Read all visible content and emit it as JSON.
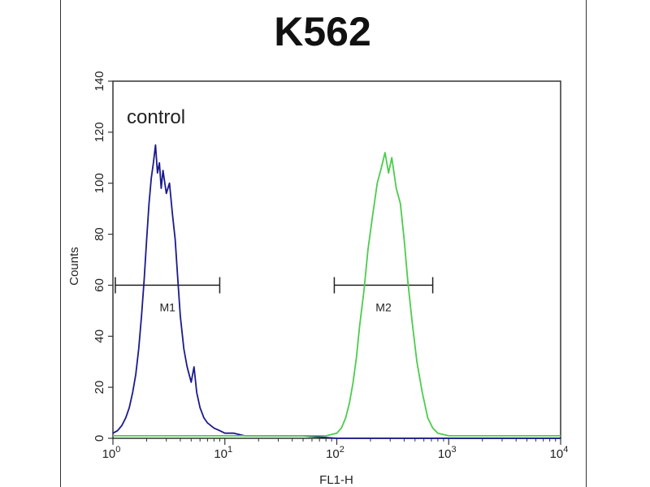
{
  "chart_data": {
    "type": "line",
    "title": "K562",
    "annotation": "control",
    "xlabel": "FL1-H",
    "ylabel": "Counts",
    "xscale": "log",
    "xlim": [
      1,
      10000
    ],
    "ylim": [
      0,
      140
    ],
    "x_ticks": [
      {
        "base": "10",
        "exp": "0",
        "value": 1
      },
      {
        "base": "10",
        "exp": "1",
        "value": 10
      },
      {
        "base": "10",
        "exp": "2",
        "value": 100
      },
      {
        "base": "10",
        "exp": "3",
        "value": 1000
      },
      {
        "base": "10",
        "exp": "4",
        "value": 10000
      }
    ],
    "y_ticks": [
      "0",
      "20",
      "40",
      "60",
      "80",
      "100",
      "120",
      "140"
    ],
    "gates": [
      {
        "label": "M1",
        "x_start": 1.05,
        "x_end": 9,
        "y": 60
      },
      {
        "label": "M2",
        "x_start": 95,
        "x_end": 720,
        "y": 60
      }
    ],
    "series": [
      {
        "color": "#1a1a8c",
        "x": [
          1.0,
          1.1,
          1.2,
          1.3,
          1.4,
          1.5,
          1.6,
          1.7,
          1.8,
          1.9,
          2.0,
          2.1,
          2.2,
          2.3,
          2.4,
          2.5,
          2.6,
          2.7,
          2.8,
          3.0,
          3.2,
          3.4,
          3.6,
          3.8,
          4.0,
          4.3,
          4.6,
          5.0,
          5.3,
          5.6,
          6.0,
          6.5,
          7.0,
          8.0,
          9.0,
          10.0,
          12.0,
          15.0,
          20.0,
          30.0,
          50.0,
          100.0,
          300.0,
          1000.0,
          10000.0
        ],
        "values": [
          2,
          3,
          5,
          8,
          12,
          18,
          25,
          35,
          48,
          62,
          78,
          92,
          102,
          108,
          115,
          104,
          108,
          98,
          105,
          96,
          100,
          88,
          78,
          62,
          48,
          35,
          28,
          22,
          28,
          18,
          12,
          8,
          6,
          4,
          3,
          2,
          2,
          1,
          1,
          1,
          1,
          0,
          0,
          0,
          0
        ]
      },
      {
        "color": "#4ccc4c",
        "x": [
          1.0,
          10.0,
          50.0,
          80.0,
          100.0,
          110.0,
          120.0,
          130.0,
          140.0,
          150.0,
          160.0,
          175.0,
          190.0,
          210.0,
          230.0,
          250.0,
          270.0,
          290.0,
          310.0,
          340.0,
          370.0,
          400.0,
          430.0,
          470.0,
          520.0,
          580.0,
          650.0,
          720.0,
          800.0,
          1000.0,
          3000.0,
          10000.0
        ],
        "values": [
          1,
          1,
          1,
          1,
          2,
          4,
          8,
          14,
          22,
          32,
          44,
          58,
          74,
          88,
          100,
          106,
          112,
          104,
          110,
          98,
          92,
          78,
          62,
          46,
          30,
          18,
          8,
          4,
          2,
          1,
          1,
          1
        ]
      }
    ]
  }
}
